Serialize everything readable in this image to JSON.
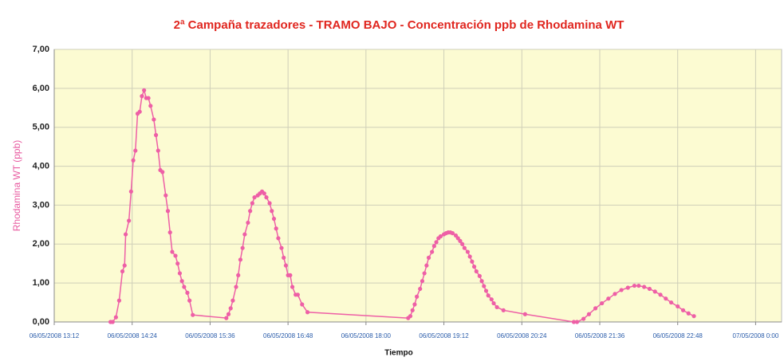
{
  "chart_data": {
    "type": "line",
    "title": "2ª Campaña trazadores - TRAMO BAJO - Concentración ppb de Rhodamina WT",
    "xlabel": "Tiempo",
    "ylabel": "Rhodamina WT (ppb)",
    "x": [
      "2008-05-06T14:04",
      "2008-05-06T14:06",
      "2008-05-06T14:09",
      "2008-05-06T14:12",
      "2008-05-06T14:15",
      "2008-05-06T14:17",
      "2008-05-06T14:18",
      "2008-05-06T14:21",
      "2008-05-06T14:23",
      "2008-05-06T14:25",
      "2008-05-06T14:27",
      "2008-05-06T14:29",
      "2008-05-06T14:31",
      "2008-05-06T14:33",
      "2008-05-06T14:35",
      "2008-05-06T14:37",
      "2008-05-06T14:39",
      "2008-05-06T14:41",
      "2008-05-06T14:44",
      "2008-05-06T14:46",
      "2008-05-06T14:48",
      "2008-05-06T14:50",
      "2008-05-06T14:52",
      "2008-05-06T14:55",
      "2008-05-06T14:57",
      "2008-05-06T14:59",
      "2008-05-06T15:01",
      "2008-05-06T15:04",
      "2008-05-06T15:06",
      "2008-05-06T15:08",
      "2008-05-06T15:10",
      "2008-05-06T15:12",
      "2008-05-06T15:15",
      "2008-05-06T15:17",
      "2008-05-06T15:20",
      "2008-05-06T15:51",
      "2008-05-06T15:53",
      "2008-05-06T15:55",
      "2008-05-06T15:57",
      "2008-05-06T16:00",
      "2008-05-06T16:02",
      "2008-05-06T16:04",
      "2008-05-06T16:06",
      "2008-05-06T16:08",
      "2008-05-06T16:11",
      "2008-05-06T16:13",
      "2008-05-06T16:15",
      "2008-05-06T16:17",
      "2008-05-06T16:20",
      "2008-05-06T16:22",
      "2008-05-06T16:24",
      "2008-05-06T16:26",
      "2008-05-06T16:28",
      "2008-05-06T16:31",
      "2008-05-06T16:33",
      "2008-05-06T16:35",
      "2008-05-06T16:37",
      "2008-05-06T16:39",
      "2008-05-06T16:42",
      "2008-05-06T16:44",
      "2008-05-06T16:46",
      "2008-05-06T16:48",
      "2008-05-06T16:50",
      "2008-05-06T16:52",
      "2008-05-06T16:55",
      "2008-05-06T16:57",
      "2008-05-06T17:01",
      "2008-05-06T17:06",
      "2008-05-06T18:39",
      "2008-05-06T18:41",
      "2008-05-06T18:43",
      "2008-05-06T18:45",
      "2008-05-06T18:47",
      "2008-05-06T18:50",
      "2008-05-06T18:52",
      "2008-05-06T18:54",
      "2008-05-06T18:56",
      "2008-05-06T18:58",
      "2008-05-06T19:01",
      "2008-05-06T19:03",
      "2008-05-06T19:05",
      "2008-05-06T19:07",
      "2008-05-06T19:09",
      "2008-05-06T19:12",
      "2008-05-06T19:14",
      "2008-05-06T19:16",
      "2008-05-06T19:18",
      "2008-05-06T19:20",
      "2008-05-06T19:23",
      "2008-05-06T19:25",
      "2008-05-06T19:27",
      "2008-05-06T19:29",
      "2008-05-06T19:31",
      "2008-05-06T19:34",
      "2008-05-06T19:36",
      "2008-05-06T19:38",
      "2008-05-06T19:40",
      "2008-05-06T19:42",
      "2008-05-06T19:45",
      "2008-05-06T19:47",
      "2008-05-06T19:49",
      "2008-05-06T19:51",
      "2008-05-06T19:53",
      "2008-05-06T19:56",
      "2008-05-06T19:58",
      "2008-05-06T20:01",
      "2008-05-06T20:07",
      "2008-05-06T20:27",
      "2008-05-06T21:12",
      "2008-05-06T21:15",
      "2008-05-06T21:21",
      "2008-05-06T21:26",
      "2008-05-06T21:32",
      "2008-05-06T21:38",
      "2008-05-06T21:44",
      "2008-05-06T21:50",
      "2008-05-06T21:56",
      "2008-05-06T22:02",
      "2008-05-06T22:08",
      "2008-05-06T22:12",
      "2008-05-06T22:17",
      "2008-05-06T22:22",
      "2008-05-06T22:27",
      "2008-05-06T22:32",
      "2008-05-06T22:37",
      "2008-05-06T22:42",
      "2008-05-06T22:48",
      "2008-05-06T22:53",
      "2008-05-06T22:58",
      "2008-05-06T23:03"
    ],
    "series": [
      {
        "name": "Rhodamina WT",
        "color": "#ee5fa6",
        "values": [
          0,
          0,
          0.12,
          0.55,
          1.3,
          1.45,
          2.25,
          2.6,
          3.35,
          4.15,
          4.4,
          5.35,
          5.4,
          5.8,
          5.95,
          5.75,
          5.75,
          5.55,
          5.2,
          4.8,
          4.4,
          3.9,
          3.85,
          3.25,
          2.85,
          2.3,
          1.8,
          1.7,
          1.5,
          1.25,
          1.05,
          0.9,
          0.75,
          0.55,
          0.18,
          0.1,
          0.2,
          0.35,
          0.55,
          0.9,
          1.2,
          1.6,
          1.9,
          2.25,
          2.55,
          2.85,
          3.05,
          3.2,
          3.25,
          3.3,
          3.35,
          3.3,
          3.2,
          3.05,
          2.85,
          2.65,
          2.4,
          2.15,
          1.9,
          1.65,
          1.45,
          1.2,
          1.2,
          0.9,
          0.7,
          0.7,
          0.45,
          0.25,
          0.1,
          0.15,
          0.3,
          0.45,
          0.65,
          0.85,
          1.05,
          1.25,
          1.45,
          1.65,
          1.8,
          1.95,
          2.05,
          2.15,
          2.2,
          2.25,
          2.28,
          2.3,
          2.3,
          2.28,
          2.22,
          2.15,
          2.08,
          2,
          1.9,
          1.8,
          1.68,
          1.55,
          1.42,
          1.3,
          1.18,
          1.05,
          0.92,
          0.8,
          0.68,
          0.58,
          0.48,
          0.38,
          0.3,
          0.2,
          0,
          0,
          0.08,
          0.2,
          0.35,
          0.48,
          0.6,
          0.72,
          0.82,
          0.88,
          0.93,
          0.93,
          0.9,
          0.85,
          0.78,
          0.7,
          0.6,
          0.5,
          0.4,
          0.3,
          0.22,
          0.15
        ]
      }
    ],
    "xlim": [
      "2008-05-06T13:12",
      "2008-05-07T00:24"
    ],
    "xticks": [
      {
        "value": "2008-05-06T13:12",
        "label": "06/05/2008 13:12"
      },
      {
        "value": "2008-05-06T14:24",
        "label": "06/05/2008 14:24"
      },
      {
        "value": "2008-05-06T15:36",
        "label": "06/05/2008 15:36"
      },
      {
        "value": "2008-05-06T16:48",
        "label": "06/05/2008 16:48"
      },
      {
        "value": "2008-05-06T18:00",
        "label": "06/05/2008 18:00"
      },
      {
        "value": "2008-05-06T19:12",
        "label": "06/05/2008 19:12"
      },
      {
        "value": "2008-05-06T20:24",
        "label": "06/05/2008 20:24"
      },
      {
        "value": "2008-05-06T21:36",
        "label": "06/05/2008 21:36"
      },
      {
        "value": "2008-05-06T22:48",
        "label": "06/05/2008 22:48"
      },
      {
        "value": "2008-05-07T00:00",
        "label": "07/05/2008 0:00"
      }
    ],
    "ylim": [
      0,
      7
    ],
    "yticks": [
      {
        "value": 0,
        "label": "0,00"
      },
      {
        "value": 1,
        "label": "1,00"
      },
      {
        "value": 2,
        "label": "2,00"
      },
      {
        "value": 3,
        "label": "3,00"
      },
      {
        "value": 4,
        "label": "4,00"
      },
      {
        "value": 5,
        "label": "5,00"
      },
      {
        "value": 6,
        "label": "6,00"
      },
      {
        "value": 7,
        "label": "7,00"
      }
    ],
    "grid": true,
    "background": "#fcfbd2"
  }
}
